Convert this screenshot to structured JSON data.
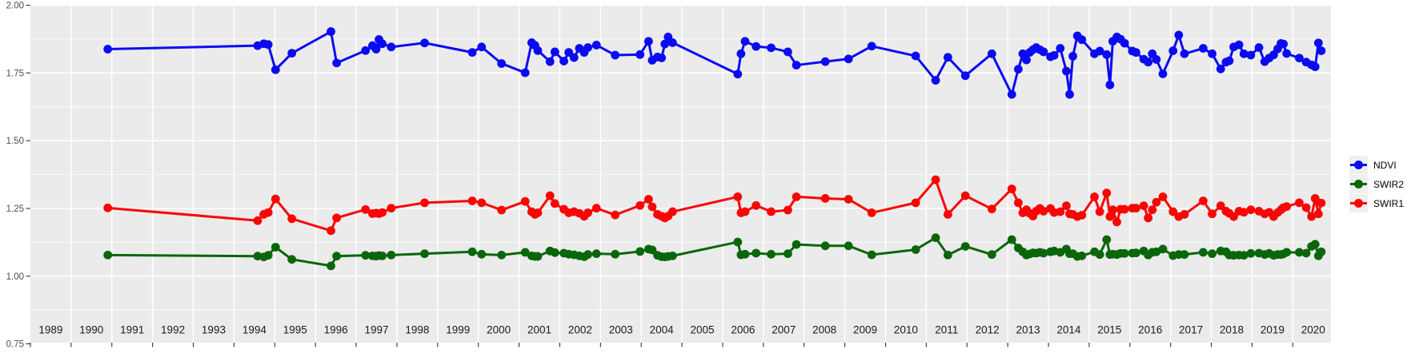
{
  "chart_data": {
    "type": "line",
    "title": "",
    "xlabel": "",
    "ylabel": "",
    "grid": true,
    "panel_background": "#ebebeb",
    "gridline_color": "#ffffff",
    "x_axis": {
      "range": [
        1989,
        2020.94
      ],
      "tick_labels": [
        "1989",
        "1990",
        "1991",
        "1992",
        "1993",
        "1994",
        "1995",
        "1996",
        "1997",
        "1998",
        "1999",
        "2000",
        "2001",
        "2002",
        "2003",
        "2004",
        "2005",
        "2006",
        "2007",
        "2008",
        "2009",
        "2010",
        "2011",
        "2012",
        "2013",
        "2014",
        "2015",
        "2016",
        "2017",
        "2018",
        "2019",
        "2020"
      ]
    },
    "y_axis": {
      "range": [
        0.75,
        2.0
      ],
      "tick_labels": [
        "2.00",
        "1.75",
        "1.50",
        "1.25",
        "1.00",
        "0.75"
      ],
      "tick_values": [
        2.0,
        1.75,
        1.5,
        1.25,
        1.0,
        0.75
      ],
      "minor_tick_values": [
        1.875,
        1.625,
        1.375,
        1.125,
        0.875
      ]
    },
    "legend": {
      "position": "right",
      "entries": [
        {
          "name": "NDVI",
          "color": "#0b0bf2"
        },
        {
          "name": "SWIR2",
          "color": "#0a660a"
        },
        {
          "name": "SWIR1",
          "color": "#fa0505"
        }
      ]
    },
    "x": [
      1990.9,
      1994.58,
      1994.73,
      1994.84,
      1995.02,
      1995.42,
      1996.38,
      1996.52,
      1997.23,
      1997.4,
      1997.49,
      1997.56,
      1997.64,
      1997.86,
      1998.68,
      1999.85,
      2000.08,
      2000.57,
      2001.15,
      2001.31,
      2001.39,
      2001.46,
      2001.76,
      2001.88,
      2002.1,
      2002.22,
      2002.35,
      2002.48,
      2002.6,
      2002.69,
      2002.9,
      2003.36,
      2003.97,
      2004.18,
      2004.27,
      2004.4,
      2004.5,
      2004.58,
      2004.66,
      2004.77,
      2006.37,
      2006.45,
      2006.55,
      2006.82,
      2007.19,
      2007.6,
      2007.81,
      2008.52,
      2009.09,
      2009.66,
      2010.74,
      2011.23,
      2011.53,
      2011.96,
      2012.61,
      2013.1,
      2013.26,
      2013.37,
      2013.46,
      2013.54,
      2013.62,
      2013.7,
      2013.79,
      2013.88,
      2014.05,
      2014.14,
      2014.29,
      2014.44,
      2014.52,
      2014.6,
      2014.71,
      2014.82,
      2015.13,
      2015.26,
      2015.43,
      2015.51,
      2015.58,
      2015.68,
      2015.77,
      2015.87,
      2016.06,
      2016.15,
      2016.34,
      2016.45,
      2016.55,
      2016.65,
      2016.81,
      2017.06,
      2017.2,
      2017.34,
      2017.8,
      2018.02,
      2018.23,
      2018.36,
      2018.44,
      2018.55,
      2018.68,
      2018.8,
      2018.97,
      2019.17,
      2019.31,
      2019.42,
      2019.53,
      2019.63,
      2019.71,
      2019.77,
      2019.85,
      2020.16,
      2020.33,
      2020.46,
      2020.55,
      2020.63,
      2020.7
    ],
    "series": [
      {
        "name": "NDVI",
        "color": "#0b0bf2",
        "values": [
          1.838,
          1.851,
          1.858,
          1.855,
          1.762,
          1.823,
          1.903,
          1.787,
          1.833,
          1.851,
          1.838,
          1.874,
          1.858,
          1.846,
          1.861,
          1.826,
          1.846,
          1.785,
          1.751,
          1.862,
          1.852,
          1.833,
          1.792,
          1.828,
          1.794,
          1.826,
          1.807,
          1.841,
          1.826,
          1.844,
          1.853,
          1.816,
          1.818,
          1.867,
          1.797,
          1.809,
          1.806,
          1.857,
          1.883,
          1.862,
          1.746,
          1.821,
          1.867,
          1.848,
          1.843,
          1.828,
          1.779,
          1.792,
          1.802,
          1.849,
          1.813,
          1.723,
          1.808,
          1.74,
          1.821,
          1.671,
          1.764,
          1.821,
          1.798,
          1.826,
          1.836,
          1.844,
          1.836,
          1.828,
          1.81,
          1.815,
          1.841,
          1.757,
          1.671,
          1.812,
          1.887,
          1.873,
          1.821,
          1.831,
          1.818,
          1.706,
          1.867,
          1.883,
          1.875,
          1.86,
          1.831,
          1.826,
          1.801,
          1.79,
          1.821,
          1.8,
          1.747,
          1.832,
          1.89,
          1.821,
          1.841,
          1.821,
          1.765,
          1.79,
          1.795,
          1.846,
          1.854,
          1.821,
          1.816,
          1.844,
          1.792,
          1.805,
          1.817,
          1.839,
          1.859,
          1.857,
          1.822,
          1.805,
          1.79,
          1.78,
          1.773,
          1.861,
          1.832
        ]
      },
      {
        "name": "SWIR2",
        "color": "#0a660a",
        "values": [
          1.078,
          1.074,
          1.071,
          1.077,
          1.107,
          1.062,
          1.038,
          1.074,
          1.077,
          1.075,
          1.074,
          1.076,
          1.075,
          1.078,
          1.083,
          1.09,
          1.081,
          1.078,
          1.088,
          1.075,
          1.073,
          1.073,
          1.093,
          1.087,
          1.085,
          1.081,
          1.079,
          1.075,
          1.072,
          1.08,
          1.083,
          1.081,
          1.091,
          1.1,
          1.097,
          1.077,
          1.072,
          1.071,
          1.073,
          1.075,
          1.126,
          1.079,
          1.081,
          1.085,
          1.081,
          1.083,
          1.117,
          1.112,
          1.112,
          1.079,
          1.098,
          1.142,
          1.078,
          1.11,
          1.08,
          1.135,
          1.104,
          1.09,
          1.078,
          1.082,
          1.086,
          1.085,
          1.088,
          1.085,
          1.09,
          1.093,
          1.088,
          1.1,
          1.083,
          1.083,
          1.073,
          1.075,
          1.09,
          1.08,
          1.135,
          1.08,
          1.081,
          1.08,
          1.084,
          1.084,
          1.085,
          1.086,
          1.093,
          1.078,
          1.088,
          1.09,
          1.1,
          1.076,
          1.08,
          1.08,
          1.088,
          1.083,
          1.093,
          1.09,
          1.078,
          1.077,
          1.078,
          1.077,
          1.084,
          1.085,
          1.08,
          1.084,
          1.077,
          1.08,
          1.08,
          1.082,
          1.088,
          1.088,
          1.085,
          1.11,
          1.118,
          1.075,
          1.09
        ]
      },
      {
        "name": "SWIR1",
        "color": "#fa0505",
        "values": [
          1.252,
          1.205,
          1.228,
          1.235,
          1.285,
          1.212,
          1.168,
          1.215,
          1.246,
          1.231,
          1.233,
          1.231,
          1.235,
          1.251,
          1.271,
          1.278,
          1.271,
          1.244,
          1.276,
          1.238,
          1.228,
          1.234,
          1.297,
          1.268,
          1.247,
          1.234,
          1.238,
          1.232,
          1.221,
          1.234,
          1.251,
          1.226,
          1.261,
          1.284,
          1.256,
          1.228,
          1.221,
          1.215,
          1.222,
          1.238,
          1.293,
          1.234,
          1.238,
          1.261,
          1.238,
          1.244,
          1.293,
          1.287,
          1.284,
          1.234,
          1.271,
          1.356,
          1.228,
          1.297,
          1.248,
          1.322,
          1.271,
          1.234,
          1.245,
          1.232,
          1.222,
          1.24,
          1.25,
          1.24,
          1.25,
          1.235,
          1.238,
          1.26,
          1.23,
          1.228,
          1.22,
          1.225,
          1.293,
          1.238,
          1.307,
          1.22,
          1.245,
          1.2,
          1.247,
          1.247,
          1.251,
          1.251,
          1.26,
          1.215,
          1.245,
          1.273,
          1.293,
          1.238,
          1.22,
          1.228,
          1.278,
          1.23,
          1.26,
          1.24,
          1.232,
          1.22,
          1.24,
          1.236,
          1.245,
          1.24,
          1.23,
          1.236,
          1.22,
          1.235,
          1.245,
          1.253,
          1.257,
          1.271,
          1.253,
          1.22,
          1.287,
          1.23,
          1.27
        ]
      }
    ]
  }
}
